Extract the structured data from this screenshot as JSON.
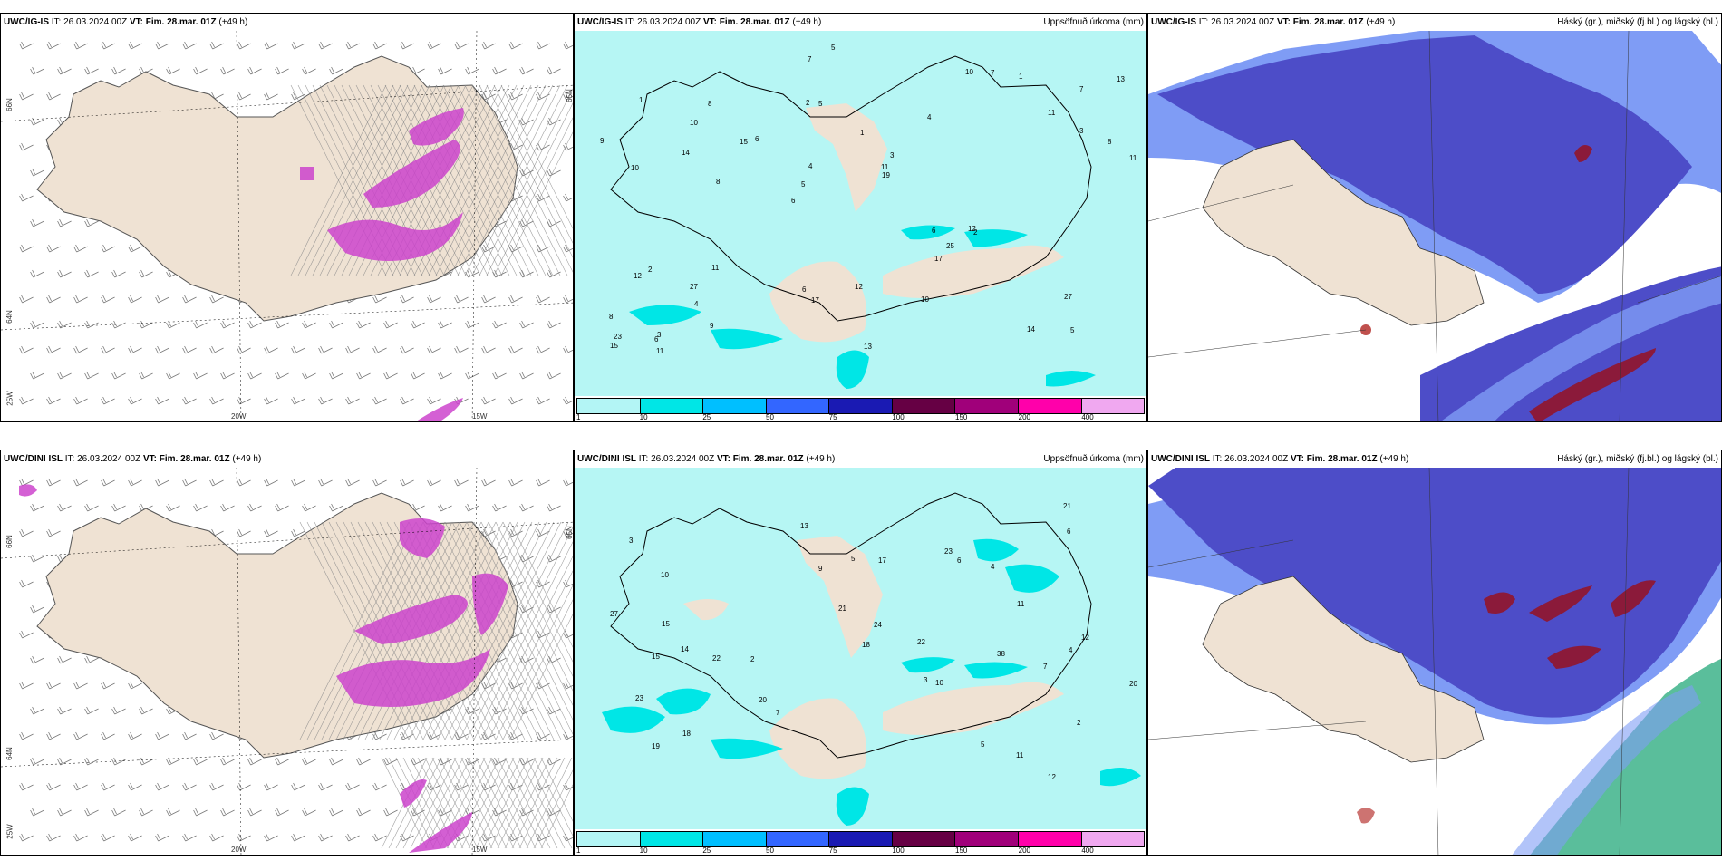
{
  "panels": [
    {
      "id": "top-left",
      "header_left_prefix": "UWC/IG-IS",
      "header_left_it": "IT: 26.03.2024 00Z",
      "header_left_vt": "VT: Fim. 28.mar. 01Z",
      "header_left_suffix": "(+49 h)",
      "header_right": "",
      "lat_labels": [
        "66N",
        "64N",
        "65N"
      ],
      "lon_labels": [
        "20W",
        "15W",
        "25W"
      ]
    },
    {
      "id": "top-middle",
      "header_left_prefix": "UWC/IG-IS",
      "header_left_it": "IT: 26.03.2024 00Z",
      "header_left_vt": "VT: Fim. 28.mar. 01Z",
      "header_left_suffix": "(+49 h)",
      "header_right": "Uppsöfnuð úrkoma (mm)"
    },
    {
      "id": "top-right",
      "header_left_prefix": "UWC/IG-IS",
      "header_left_it": "IT: 26.03.2024 00Z",
      "header_left_vt": "VT: Fim. 28.mar. 01Z",
      "header_left_suffix": "(+49 h)",
      "header_right": "Háský (gr.), miðský (fj.bl.) og lágský (bl.)"
    },
    {
      "id": "bottom-left",
      "header_left_prefix": "UWC/DINI ISL",
      "header_left_it": "IT: 26.03.2024 00Z",
      "header_left_vt": "VT: Fim. 28.mar. 01Z",
      "header_left_suffix": "(+49 h)",
      "header_right": "",
      "lat_labels": [
        "66N",
        "64N",
        "65N"
      ],
      "lon_labels": [
        "20W",
        "15W",
        "25W"
      ]
    },
    {
      "id": "bottom-middle",
      "header_left_prefix": "UWC/DINI ISL",
      "header_left_it": "IT: 26.03.2024 00Z",
      "header_left_vt": "VT: Fim. 28.mar. 01Z",
      "header_left_suffix": "(+49 h)",
      "header_right": "Uppsöfnuð úrkoma (mm)"
    },
    {
      "id": "bottom-right",
      "header_left_prefix": "UWC/DINI ISL",
      "header_left_it": "IT: 26.03.2024 00Z",
      "header_left_vt": "VT: Fim. 28.mar. 01Z",
      "header_left_suffix": "(+49 h)",
      "header_right": "Háský (gr.), miðský (fj.bl.) og lágský (bl.)"
    }
  ],
  "colorbar": {
    "ticks": [
      "1",
      "10",
      "25",
      "50",
      "75",
      "100",
      "150",
      "200",
      "400"
    ],
    "colors": [
      "#b3f5f5",
      "#00e6e6",
      "#00bfff",
      "#3366ff",
      "#1a1ab3",
      "#660044",
      "#a0007a",
      "#ff00aa",
      "#f0a8f0"
    ]
  },
  "precip_top": [
    "5",
    "10",
    "7",
    "6",
    "4",
    "3",
    "2",
    "1",
    "2",
    "6",
    "8",
    "4",
    "5",
    "3",
    "2",
    "1",
    "7",
    "11",
    "6",
    "3",
    "5",
    "6",
    "4",
    "8",
    "10",
    "11",
    "14",
    "27",
    "12",
    "13",
    "15",
    "14",
    "17",
    "9",
    "8",
    "11",
    "23",
    "17",
    "19",
    "12",
    "11",
    "13",
    "25",
    "10",
    "27",
    "11",
    "15",
    "12",
    "1",
    "5",
    "8",
    "9",
    "10",
    "7",
    "6"
  ],
  "precip_bottom": [
    "12",
    "14",
    "3",
    "3",
    "2",
    "10",
    "18",
    "2",
    "4",
    "5",
    "6",
    "11",
    "7",
    "13",
    "22",
    "23",
    "38",
    "24",
    "27",
    "19",
    "21",
    "17",
    "11",
    "20",
    "12",
    "15",
    "22",
    "18",
    "21",
    "6",
    "10",
    "15",
    "20",
    "23",
    "9",
    "7",
    "4",
    "5"
  ],
  "colors": {
    "land": "#efe2d3",
    "sea_light": "#b6f6f4",
    "sea_cyan": "#00e6e6",
    "cloud_low": "#4d4dc8",
    "cloud_low_dark": "#3a3aa8",
    "cloud_mid": "#7f9cf5",
    "cloud_high_red": "#8b1a3a",
    "cloud_green": "#3db38a",
    "precip_magenta": "#cc44cc"
  }
}
